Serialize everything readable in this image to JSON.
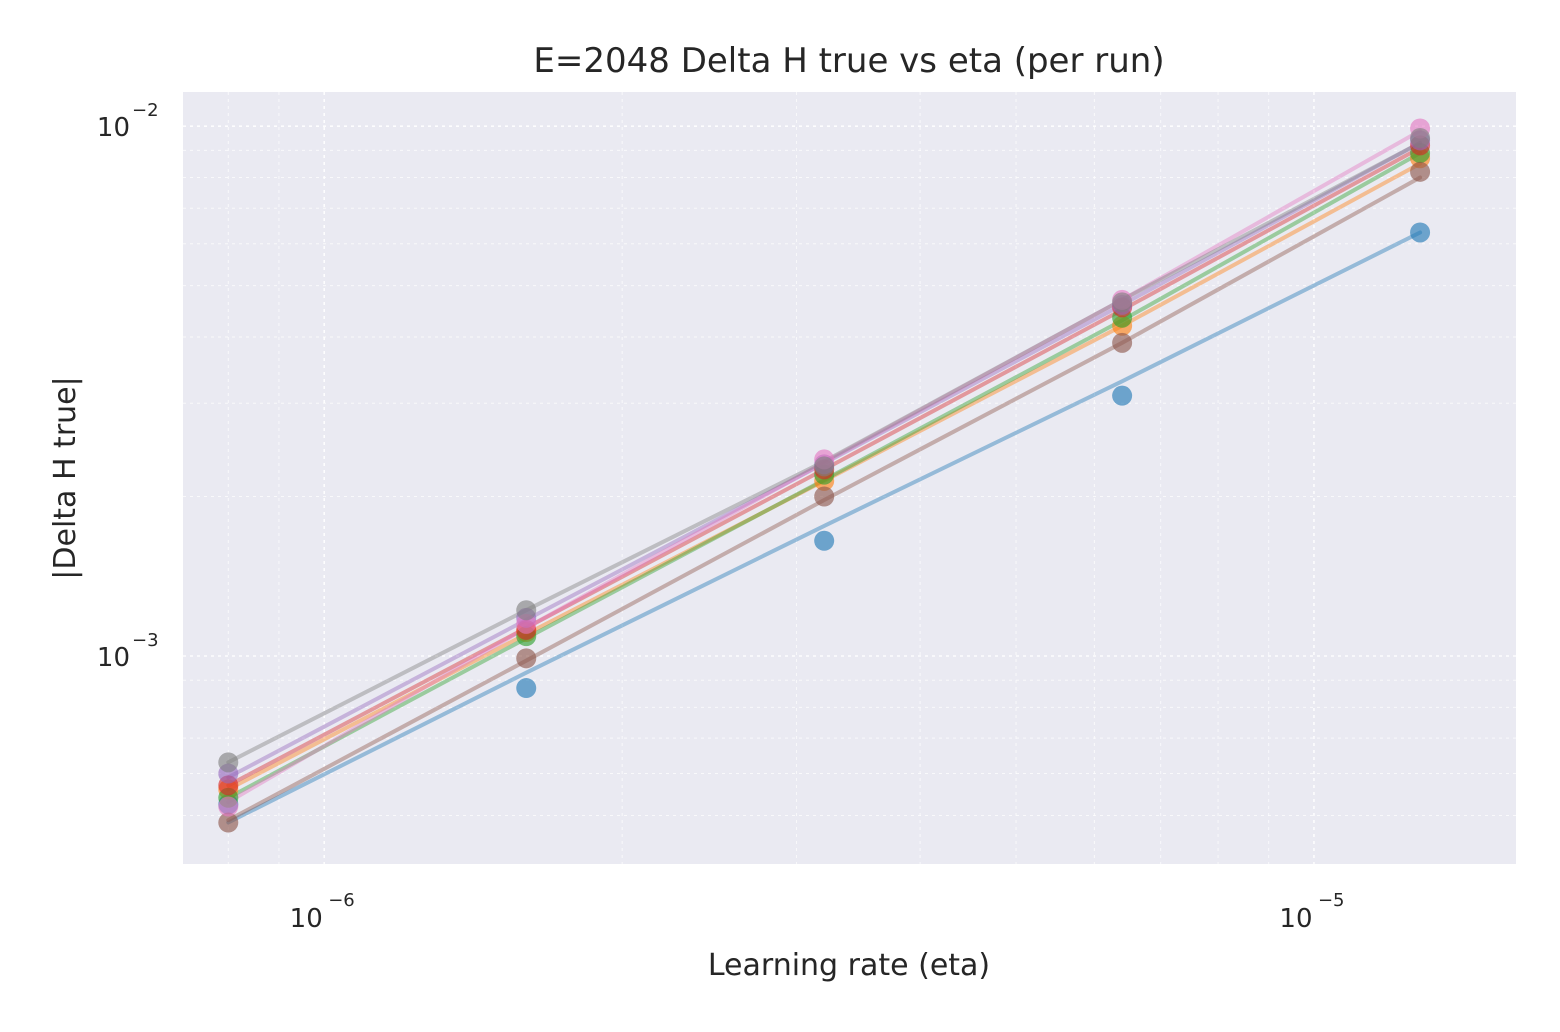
{
  "chart_data": {
    "type": "line",
    "title": "E=2048 Delta H true vs eta (per run)",
    "xlabel": "Learning rate (eta)",
    "ylabel": "|Delta H true|",
    "xscale": "log",
    "yscale": "log",
    "xlim": [
      7.2e-07,
      1.6e-05
    ],
    "ylim": [
      0.000405,
      0.0116
    ],
    "grid": true,
    "x_ticks": [
      {
        "value": 1e-06,
        "base": "10",
        "exp": "−6"
      },
      {
        "value": 1e-05,
        "base": "10",
        "exp": "−5"
      }
    ],
    "y_ticks": [
      {
        "value": 0.001,
        "base": "10",
        "exp": "−3"
      },
      {
        "value": 0.01,
        "base": "10",
        "exp": "−2"
      }
    ],
    "x": [
      8e-07,
      1.6e-06,
      3.2e-06,
      6.4e-06,
      1.28e-05
    ],
    "series": [
      {
        "color": "#1f77b4",
        "points": [
          0.000525,
          0.00087,
          0.00165,
          0.0031,
          0.0063
        ],
        "fit": [
          0.000485,
          0.00093,
          0.00176,
          0.0033,
          0.0063
        ]
      },
      {
        "color": "#ff7f0e",
        "points": [
          0.00056,
          0.00111,
          0.00214,
          0.0042,
          0.0087
        ],
        "fit": [
          0.00056,
          0.0011,
          0.00214,
          0.0042,
          0.0085
        ]
      },
      {
        "color": "#2ca02c",
        "points": [
          0.00054,
          0.00109,
          0.0022,
          0.00435,
          0.0089
        ],
        "fit": [
          0.00054,
          0.00108,
          0.00215,
          0.0043,
          0.0089
        ]
      },
      {
        "color": "#d62728",
        "points": [
          0.00057,
          0.00112,
          0.00225,
          0.00455,
          0.0092
        ],
        "fit": [
          0.00057,
          0.00113,
          0.00225,
          0.0045,
          0.0091
        ]
      },
      {
        "color": "#9467bd",
        "points": [
          0.0006,
          0.00118,
          0.0023,
          0.0046,
          0.0094
        ],
        "fit": [
          0.00059,
          0.00117,
          0.00231,
          0.0046,
          0.0093
        ]
      },
      {
        "color": "#8c564b",
        "points": [
          0.000485,
          0.00099,
          0.002,
          0.0039,
          0.0082
        ],
        "fit": [
          0.00049,
          0.00098,
          0.00197,
          0.0039,
          0.008
        ]
      },
      {
        "color": "#e377c2",
        "points": [
          0.00052,
          0.00115,
          0.00235,
          0.0047,
          0.0099
        ],
        "fit": [
          0.00053,
          0.00113,
          0.00232,
          0.0047,
          0.0098
        ]
      },
      {
        "color": "#7f7f7f",
        "points": [
          0.00063,
          0.00122,
          0.00228,
          0.00465,
          0.0095
        ],
        "fit": [
          0.00063,
          0.00122,
          0.00233,
          0.0047,
          0.0093
        ]
      }
    ]
  }
}
